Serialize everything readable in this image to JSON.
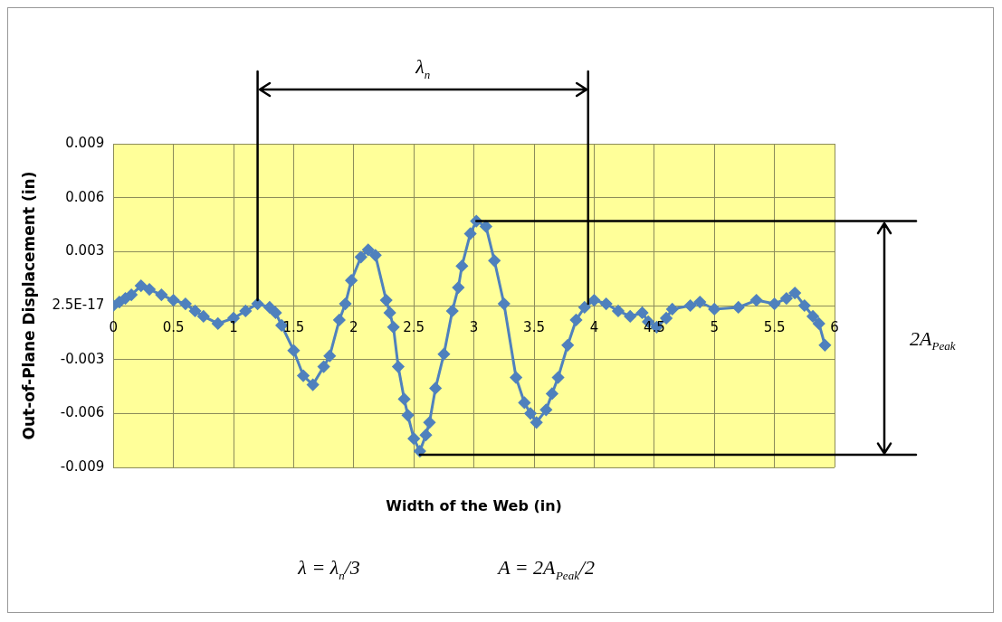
{
  "chart_data": {
    "type": "line",
    "xlabel": "Width of the Web (in)",
    "ylabel": "Out-of-Plane Displacement (in)",
    "x": [
      0,
      0.05,
      0.1,
      0.15,
      0.23,
      0.3,
      0.4,
      0.5,
      0.6,
      0.68,
      0.75,
      0.87,
      1.0,
      1.1,
      1.2,
      1.3,
      1.35,
      1.4,
      1.5,
      1.58,
      1.66,
      1.75,
      1.8,
      1.88,
      1.93,
      1.98,
      2.06,
      2.12,
      2.18,
      2.27,
      2.3,
      2.33,
      2.37,
      2.42,
      2.45,
      2.5,
      2.55,
      2.6,
      2.63,
      2.68,
      2.75,
      2.82,
      2.87,
      2.9,
      2.97,
      3.02,
      3.1,
      3.17,
      3.25,
      3.35,
      3.42,
      3.47,
      3.52,
      3.6,
      3.65,
      3.7,
      3.78,
      3.85,
      3.92,
      4.0,
      4.1,
      4.2,
      4.3,
      4.4,
      4.45,
      4.52,
      4.6,
      4.65,
      4.8,
      4.88,
      5.0,
      5.2,
      5.35,
      5.5,
      5.6,
      5.67,
      5.75,
      5.82,
      5.87,
      5.92
    ],
    "series": [
      {
        "color": "#4f81bd",
        "values": [
          0,
          0.0002,
          0.0004,
          0.0006,
          0.0011,
          0.0009,
          0.0006,
          0.0003,
          0.0001,
          -0.0003,
          -0.0006,
          -0.001,
          -0.0007,
          -0.0003,
          0.0001,
          -0.0001,
          -0.0004,
          -0.0011,
          -0.0025,
          -0.0039,
          -0.0044,
          -0.0034,
          -0.0028,
          -0.0008,
          0.0001,
          0.0014,
          0.0027,
          0.0031,
          0.0028,
          0.0003,
          -0.0004,
          -0.0012,
          -0.0034,
          -0.0052,
          -0.0061,
          -0.0074,
          -0.0081,
          -0.0072,
          -0.0065,
          -0.0046,
          -0.0027,
          -0.0003,
          0.001,
          0.0022,
          0.004,
          0.0047,
          0.0044,
          0.0025,
          0.0001,
          -0.004,
          -0.0054,
          -0.006,
          -0.0065,
          -0.0058,
          -0.0049,
          -0.004,
          -0.0022,
          -0.0008,
          -0.0001,
          0.0003,
          0.0001,
          -0.0003,
          -0.0006,
          -0.0004,
          -0.0009,
          -0.0012,
          -0.0007,
          -0.0002,
          0,
          0.0002,
          -0.0002,
          -0.0001,
          0.0003,
          0.0001,
          0.0004,
          0.0007,
          0,
          -0.0006,
          -0.001,
          -0.0022
        ]
      }
    ],
    "xlim": [
      0,
      6
    ],
    "xticks": [
      0,
      0.5,
      1,
      1.5,
      2,
      2.5,
      3,
      3.5,
      4,
      4.5,
      5,
      5.5,
      6
    ],
    "ylim": [
      -0.009,
      0.009
    ],
    "yticks": [
      -0.009,
      -0.006,
      -0.003,
      {
        "value": 0,
        "label": "2.5E-17"
      },
      0.003,
      0.006,
      0.009
    ],
    "grid": true,
    "legend": false,
    "marker": "diamond",
    "line_style": "solid",
    "ref_lines": [
      {
        "axis": "x",
        "value": 1.2,
        "color": "#000000"
      },
      {
        "axis": "x",
        "value": 3.95,
        "color": "#000000"
      },
      {
        "axis": "y",
        "value": 0.0047,
        "color": "#000000"
      },
      {
        "axis": "y",
        "value": -0.0083,
        "color": "#000000"
      }
    ],
    "annotations": [
      "λ$_{n}$",
      "2A$_{Peak}$",
      "λ = λ$_{n}$/3",
      "A = 2A$_{Peak}$/2"
    ]
  }
}
